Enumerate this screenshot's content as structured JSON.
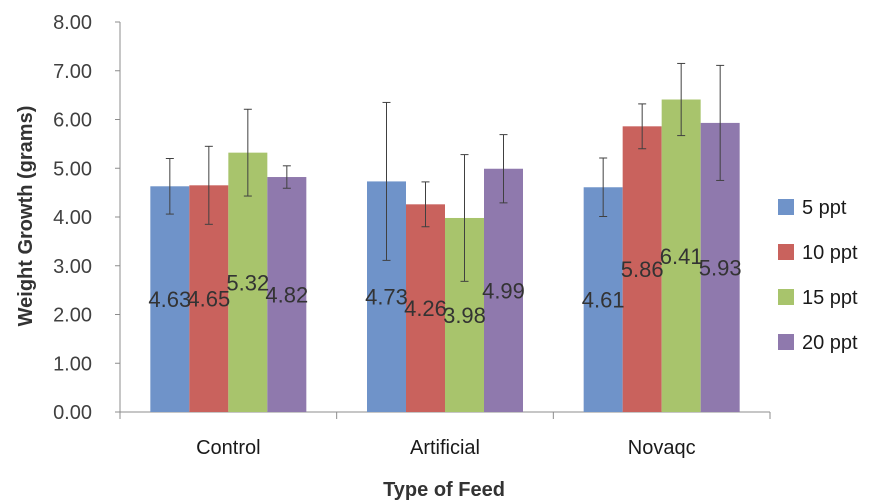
{
  "chart_data": {
    "type": "bar",
    "xlabel": "Type of Feed",
    "ylabel": "Weight Growth (grams)",
    "ylim": [
      0,
      8
    ],
    "yticks": [
      "0.00",
      "1.00",
      "2.00",
      "3.00",
      "4.00",
      "5.00",
      "6.00",
      "7.00",
      "8.00"
    ],
    "categories": [
      "Control",
      "Artificial",
      "Novaqc"
    ],
    "series": [
      {
        "name": "5 ppt",
        "color": "#6f93c9",
        "values": [
          4.63,
          4.73,
          4.61
        ],
        "labels": [
          "4.63",
          "4.73",
          "4.61"
        ],
        "error": [
          0.57,
          1.62,
          0.6
        ]
      },
      {
        "name": "10 ppt",
        "color": "#c9625d",
        "values": [
          4.65,
          4.26,
          5.86
        ],
        "labels": [
          "4.65",
          "4.26",
          "5.86"
        ],
        "error": [
          0.8,
          0.46,
          0.46
        ]
      },
      {
        "name": "15 ppt",
        "color": "#a8c46c",
        "values": [
          5.32,
          3.98,
          6.41
        ],
        "labels": [
          "5.32",
          "3.98",
          "6.41"
        ],
        "error": [
          0.89,
          1.3,
          0.74
        ]
      },
      {
        "name": "20 ppt",
        "color": "#8f79ad",
        "values": [
          4.82,
          4.99,
          5.93
        ],
        "labels": [
          "4.82",
          "4.99",
          "5.93"
        ],
        "error": [
          0.23,
          0.7,
          1.18
        ]
      }
    ],
    "legend_position": "right",
    "grid": false
  }
}
